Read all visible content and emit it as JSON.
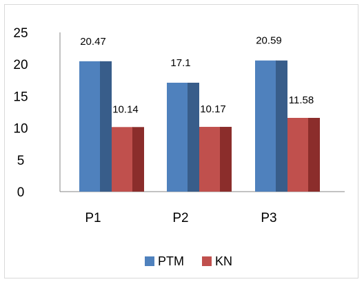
{
  "chart_data": {
    "type": "bar",
    "categories": [
      "P1",
      "P2",
      "P3"
    ],
    "series": [
      {
        "name": "PTM",
        "values": [
          20.47,
          17.1,
          20.59
        ],
        "color": "#4f81bd",
        "side_color": "#385d8a"
      },
      {
        "name": "KN",
        "values": [
          10.14,
          10.17,
          11.58
        ],
        "color": "#c0504d",
        "side_color": "#8b2d2b"
      }
    ],
    "data_labels": [
      [
        "20.47",
        "17.1",
        "20.59"
      ],
      [
        "10.14",
        "10.17",
        "11.58"
      ]
    ],
    "yticks": [
      "0",
      "5",
      "10",
      "15",
      "20",
      "25"
    ],
    "ylim": [
      0,
      25
    ],
    "legend_position": "bottom",
    "grid": false
  }
}
